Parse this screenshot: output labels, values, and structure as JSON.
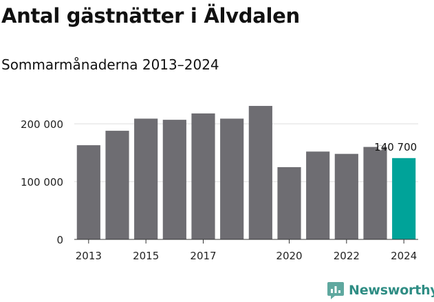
{
  "header": {
    "title": "Antal gästnätter i Älvdalen",
    "subtitle": "Sommarmånaderna 2013–2024"
  },
  "brand": {
    "name": "Newsworthy",
    "color": "#2f8d84"
  },
  "colors": {
    "bar": "#6e6d72",
    "highlight": "#00a399",
    "grid": "#dddddd",
    "axis": "#333333"
  },
  "chart_data": {
    "type": "bar",
    "categories": [
      "2013",
      "2014",
      "2015",
      "2016",
      "2017",
      "2018",
      "2019",
      "2020",
      "2021",
      "2022",
      "2023",
      "2024"
    ],
    "values": [
      163000,
      188000,
      209000,
      207000,
      218000,
      209000,
      231000,
      125000,
      152000,
      148000,
      160000,
      140700
    ],
    "highlight_index": 11,
    "tick_labels_x": [
      "2013",
      "2015",
      "2017",
      "2020",
      "2022",
      "2024"
    ],
    "y_ticks": [
      0,
      100000,
      200000
    ],
    "y_tick_labels": [
      "0",
      "100 000",
      "200 000"
    ],
    "ylim": [
      0,
      240000
    ],
    "annotation": {
      "category": "2024",
      "text": "140 700"
    },
    "grid": true
  }
}
